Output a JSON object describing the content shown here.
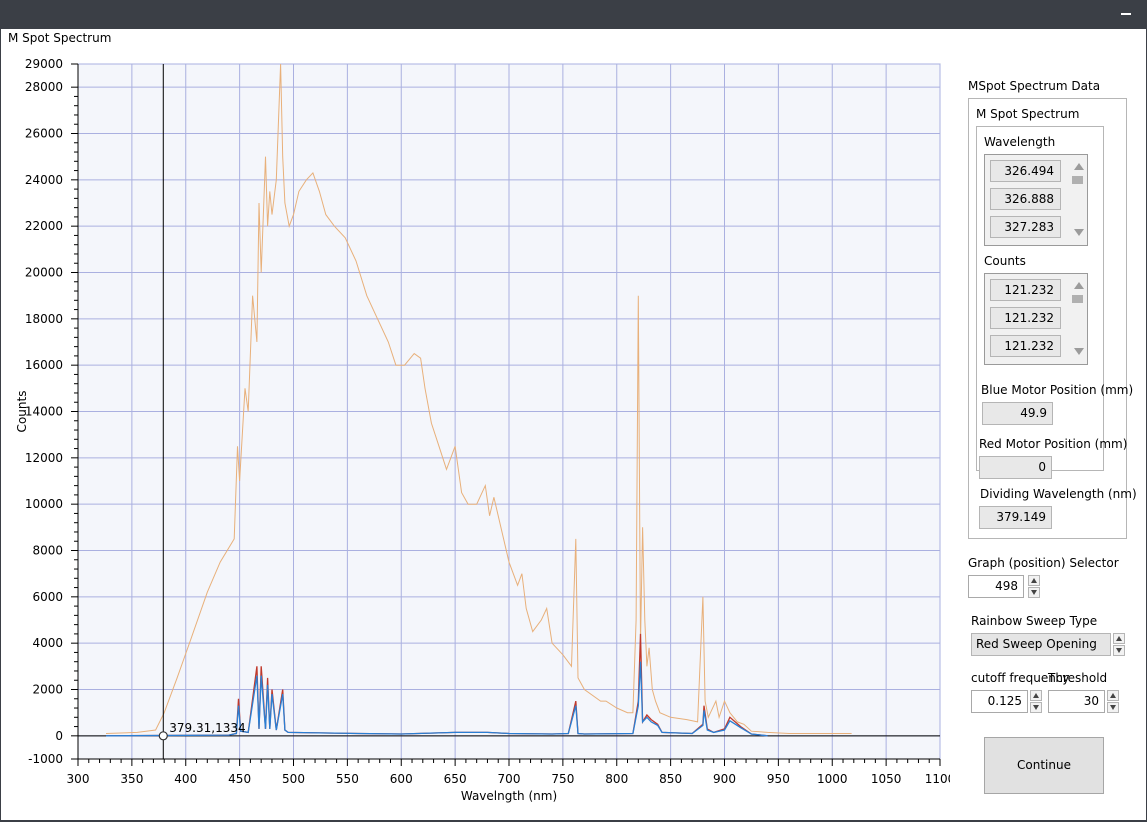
{
  "window": {
    "minimize_label": "–"
  },
  "chart_title": "M Spot Spectrum",
  "chart_data": {
    "type": "line",
    "xlabel": "Wavelngth (nm)",
    "ylabel": "Counts",
    "xlim": [
      300,
      1100
    ],
    "ylim": [
      -1000,
      29000
    ],
    "x_ticks": [
      300,
      350,
      400,
      450,
      500,
      550,
      600,
      650,
      700,
      750,
      800,
      850,
      900,
      950,
      1000,
      1050,
      1100
    ],
    "y_ticks": [
      -1000,
      0,
      2000,
      4000,
      6000,
      8000,
      10000,
      12000,
      14000,
      16000,
      18000,
      20000,
      22000,
      24000,
      26000,
      28000,
      29000
    ],
    "grid": true,
    "cursor": {
      "x": 379.149,
      "label": "379.31,1334"
    },
    "series": [
      {
        "color": "#e8b07a",
        "x": [
          326,
          355,
          372,
          380,
          392,
          405,
          420,
          432,
          445,
          448,
          450,
          455,
          458,
          462,
          466,
          468,
          470,
          474,
          476,
          478,
          480,
          484,
          488,
          490,
          492,
          496,
          500,
          505,
          512,
          518,
          524,
          530,
          538,
          548,
          558,
          568,
          578,
          588,
          595,
          603,
          612,
          618,
          622,
          628,
          635,
          642,
          650,
          656,
          662,
          670,
          678,
          682,
          686,
          690,
          700,
          708,
          712,
          716,
          722,
          730,
          735,
          740,
          750,
          758,
          762,
          764,
          770,
          785,
          790,
          800,
          810,
          815,
          818,
          820,
          822,
          824,
          826,
          828,
          830,
          833,
          836,
          840,
          850,
          865,
          875,
          880,
          882,
          885,
          892,
          895,
          900,
          905,
          912,
          918,
          925,
          940,
          960,
          1000,
          1018
        ],
        "y": [
          100,
          150,
          250,
          1000,
          2500,
          4200,
          6200,
          7500,
          8500,
          12500,
          11000,
          15000,
          14000,
          19000,
          17000,
          23000,
          20000,
          25000,
          22000,
          23500,
          22500,
          24000,
          29000,
          25000,
          23000,
          22000,
          22500,
          23500,
          24000,
          24300,
          23500,
          22500,
          22000,
          21500,
          20500,
          19000,
          18000,
          17000,
          16000,
          16000,
          16500,
          16300,
          15000,
          13500,
          12500,
          11500,
          12500,
          10500,
          10000,
          10000,
          10800,
          9500,
          10300,
          9500,
          7500,
          6500,
          7000,
          5500,
          4500,
          5000,
          5500,
          4000,
          3500,
          3000,
          8500,
          2500,
          2000,
          1500,
          1500,
          1200,
          1000,
          1000,
          5000,
          19000,
          4000,
          9000,
          5000,
          3000,
          3800,
          2000,
          1500,
          1000,
          800,
          700,
          600,
          6000,
          1500,
          800,
          1500,
          800,
          1500,
          1000,
          600,
          500,
          200,
          150,
          100,
          100,
          100
        ]
      },
      {
        "color": "#c0392b",
        "x": [
          326,
          440,
          447,
          449,
          451,
          458,
          466,
          468,
          470,
          474,
          476,
          478,
          480,
          484,
          490,
          492,
          495,
          560,
          600,
          650,
          680,
          700,
          740,
          755,
          762,
          764,
          770,
          815,
          820,
          822,
          824,
          828,
          832,
          838,
          842,
          870,
          880,
          881,
          884,
          890,
          900,
          905,
          915,
          925,
          940
        ],
        "y": [
          0,
          30,
          100,
          1600,
          200,
          150,
          3000,
          300,
          3000,
          300,
          2500,
          300,
          2000,
          250,
          2000,
          250,
          150,
          100,
          80,
          150,
          150,
          100,
          80,
          100,
          1500,
          100,
          80,
          100,
          1500,
          4400,
          600,
          900,
          700,
          500,
          150,
          100,
          500,
          1300,
          300,
          150,
          300,
          800,
          400,
          80,
          0
        ]
      },
      {
        "color": "#2a7fd4",
        "x": [
          326,
          440,
          447,
          449,
          451,
          458,
          466,
          468,
          470,
          474,
          476,
          478,
          480,
          484,
          490,
          492,
          495,
          560,
          600,
          650,
          680,
          700,
          740,
          755,
          762,
          764,
          770,
          815,
          820,
          822,
          824,
          828,
          832,
          838,
          842,
          870,
          880,
          881,
          884,
          890,
          900,
          905,
          915,
          925,
          940
        ],
        "y": [
          0,
          30,
          100,
          1300,
          200,
          150,
          2600,
          300,
          2600,
          300,
          2200,
          300,
          1800,
          250,
          1800,
          250,
          150,
          100,
          80,
          150,
          150,
          100,
          80,
          100,
          1300,
          100,
          80,
          100,
          1300,
          3200,
          600,
          800,
          600,
          450,
          150,
          100,
          450,
          1100,
          250,
          150,
          250,
          650,
          350,
          80,
          0
        ]
      }
    ]
  },
  "panel": {
    "title": "MSpot Spectrum Data",
    "group_title": "M Spot Spectrum",
    "wavelength": {
      "label": "Wavelength",
      "values": [
        "326.494",
        "326.888",
        "327.283"
      ]
    },
    "counts": {
      "label": "Counts",
      "values": [
        "121.232",
        "121.232",
        "121.232"
      ]
    },
    "blue_motor": {
      "label": "Blue Motor Position (mm)",
      "value": "49.9"
    },
    "red_motor": {
      "label": "Red Motor Position (mm)",
      "value": "0"
    },
    "dividing": {
      "label": "Dividing Wavelength (nm)",
      "value": "379.149"
    },
    "graph_selector": {
      "label": "Graph (position) Selector",
      "value": "498"
    },
    "sweep_type": {
      "label": "Rainbow Sweep Type",
      "value": "Red Sweep Opening"
    },
    "cutoff": {
      "label": "cutoff frequency",
      "value": "0.125"
    },
    "threshold": {
      "label": "Threshold",
      "value": "30"
    },
    "continue_label": "Continue"
  }
}
